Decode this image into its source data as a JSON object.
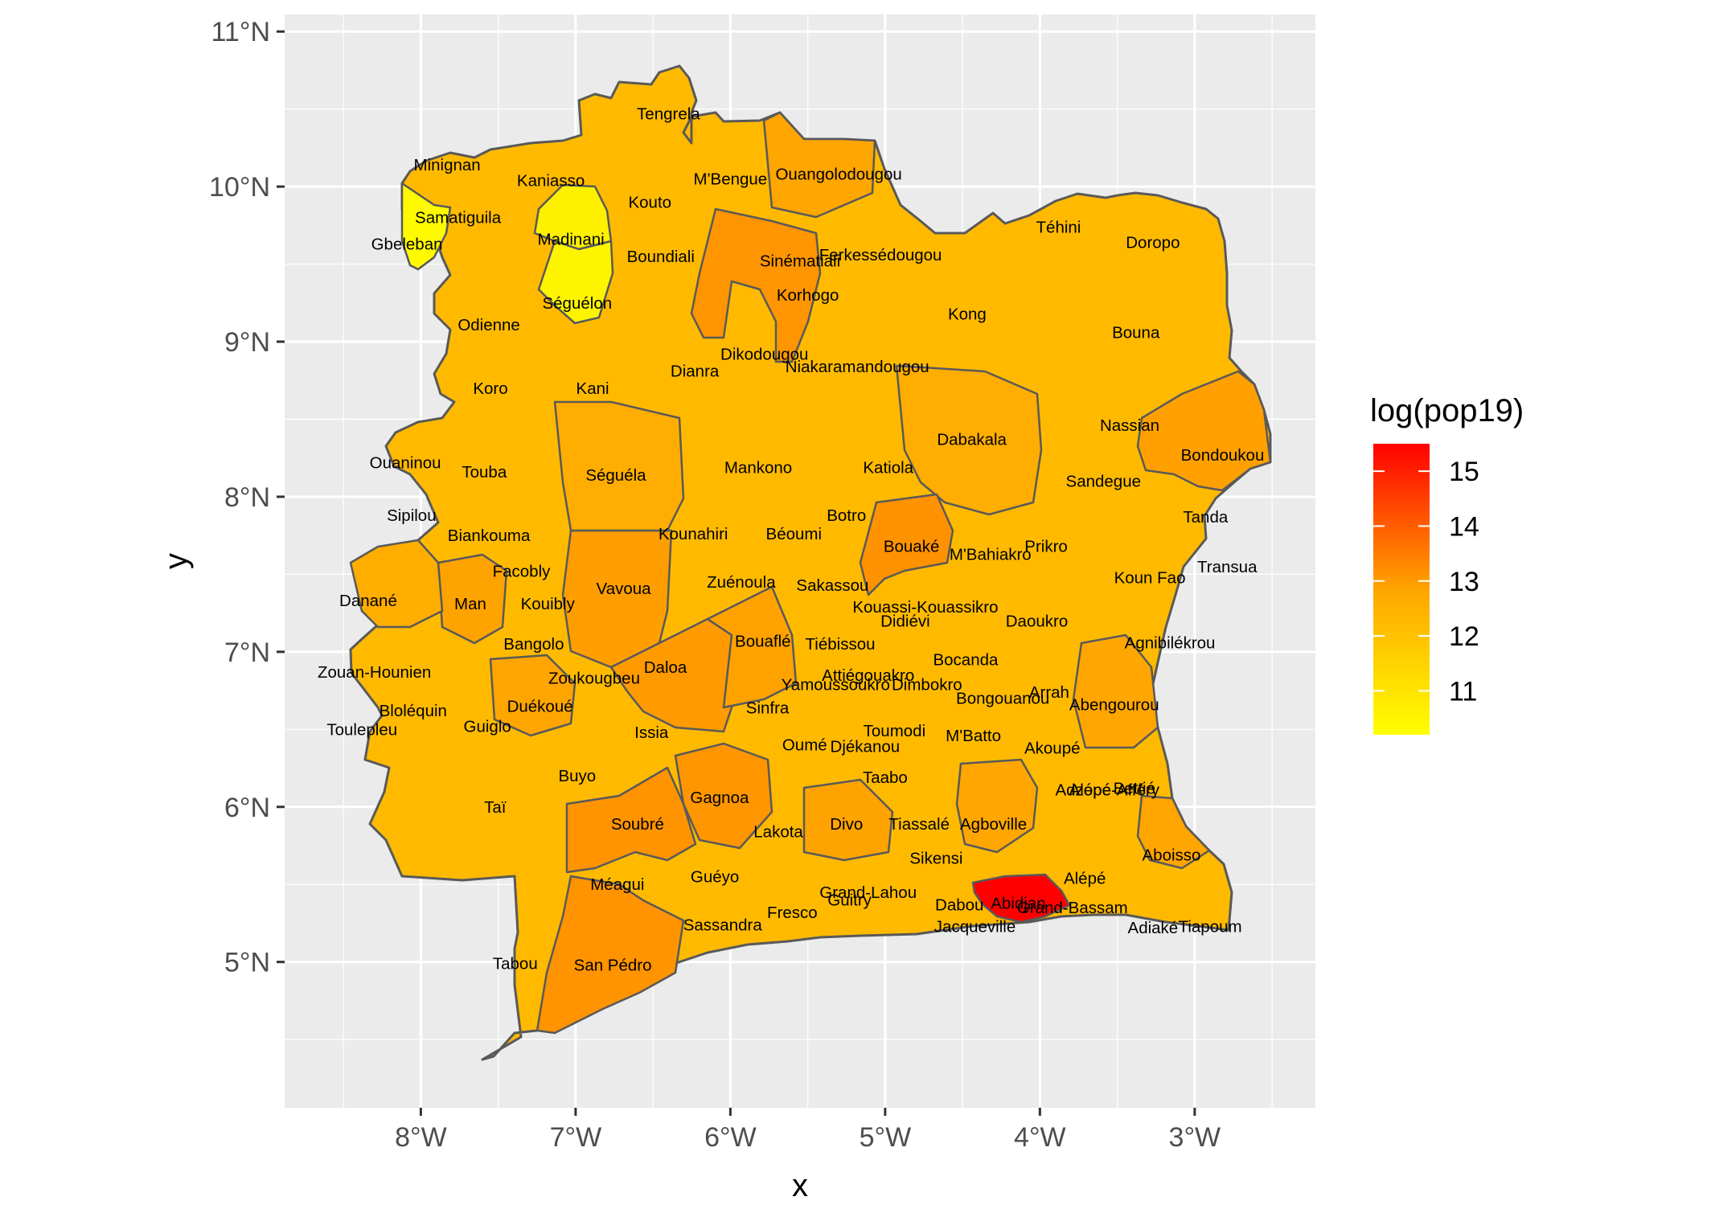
{
  "chart_data": {
    "type": "choropleth",
    "title": "",
    "xlabel": "x",
    "ylabel": "y",
    "x_ticks": [
      "8°W",
      "7°W",
      "6°W",
      "5°W",
      "4°W",
      "3°W"
    ],
    "x_tick_values": [
      -8,
      -7,
      -6,
      -5,
      -4,
      -3
    ],
    "y_ticks": [
      "5°N",
      "6°N",
      "7°N",
      "8°N",
      "9°N",
      "10°N",
      "11°N"
    ],
    "y_tick_values": [
      5,
      6,
      7,
      8,
      9,
      10,
      11
    ],
    "xlim": [
      -8.88,
      -2.22
    ],
    "ylim": [
      4.06,
      11.11
    ],
    "grid": true,
    "legend": {
      "title": "log(pop19)",
      "placement": "right",
      "ticks": [
        "15",
        "14",
        "13",
        "12",
        "11"
      ],
      "tick_values": [
        15,
        14,
        13,
        12,
        11
      ],
      "range": [
        10.2,
        15.5
      ],
      "color_low": "#FFFF00",
      "color_high": "#FF0000"
    },
    "fill_range": [
      10.2,
      15.5
    ],
    "colors": {
      "panel": "#EBEBEB",
      "grid": "#FFFFFF",
      "border": "#595959",
      "low": "#FFFF00",
      "high": "#FF0000"
    },
    "regions": [
      {
        "name": "Tengrela",
        "lon": -6.4,
        "lat": 10.47,
        "value": 12.3
      },
      {
        "name": "Minignan",
        "lon": -7.83,
        "lat": 10.14,
        "value": 11.0
      },
      {
        "name": "Kaniasso",
        "lon": -7.16,
        "lat": 10.04,
        "value": 11.6
      },
      {
        "name": "M'Bengue",
        "lon": -6.0,
        "lat": 10.05,
        "value": 12.0
      },
      {
        "name": "Ouangolodougou",
        "lon": -5.3,
        "lat": 10.08,
        "value": 12.7
      },
      {
        "name": "Kouto",
        "lon": -6.52,
        "lat": 9.9,
        "value": 12.1
      },
      {
        "name": "Samatiguila",
        "lon": -7.76,
        "lat": 9.8,
        "value": 10.7
      },
      {
        "name": "Madinani",
        "lon": -7.03,
        "lat": 9.66,
        "value": 10.8
      },
      {
        "name": "Gbeleban",
        "lon": -8.09,
        "lat": 9.63,
        "value": 10.3
      },
      {
        "name": "Boundiali",
        "lon": -6.45,
        "lat": 9.55,
        "value": 12.1
      },
      {
        "name": "Sinématiali",
        "lon": -5.55,
        "lat": 9.52,
        "value": 11.8
      },
      {
        "name": "Ferkessédougou",
        "lon": -5.03,
        "lat": 9.56,
        "value": 12.3
      },
      {
        "name": "Téhini",
        "lon": -3.88,
        "lat": 9.74,
        "value": 11.4
      },
      {
        "name": "Doropo",
        "lon": -3.27,
        "lat": 9.64,
        "value": 11.7
      },
      {
        "name": "Korhogo",
        "lon": -5.5,
        "lat": 9.3,
        "value": 13.6
      },
      {
        "name": "Séguélon",
        "lon": -6.99,
        "lat": 9.25,
        "value": 10.7
      },
      {
        "name": "Odienne",
        "lon": -7.56,
        "lat": 9.11,
        "value": 11.6
      },
      {
        "name": "Kong",
        "lon": -4.47,
        "lat": 9.18,
        "value": 12.0
      },
      {
        "name": "Bouna",
        "lon": -3.38,
        "lat": 9.06,
        "value": 12.0
      },
      {
        "name": "Dikodougou",
        "lon": -5.78,
        "lat": 8.92,
        "value": 12.4
      },
      {
        "name": "Niakaramandougou",
        "lon": -5.18,
        "lat": 8.84,
        "value": 12.3
      },
      {
        "name": "Dianra",
        "lon": -6.23,
        "lat": 8.81,
        "value": 11.9
      },
      {
        "name": "Koro",
        "lon": -7.55,
        "lat": 8.7,
        "value": 11.8
      },
      {
        "name": "Kani",
        "lon": -6.89,
        "lat": 8.7,
        "value": 11.9
      },
      {
        "name": "Nassian",
        "lon": -3.42,
        "lat": 8.46,
        "value": 11.1
      },
      {
        "name": "Dabakala",
        "lon": -4.44,
        "lat": 8.37,
        "value": 12.6
      },
      {
        "name": "Bondoukou",
        "lon": -2.82,
        "lat": 8.27,
        "value": 13.1
      },
      {
        "name": "Ouaninou",
        "lon": -8.1,
        "lat": 8.22,
        "value": 11.2
      },
      {
        "name": "Touba",
        "lon": -7.59,
        "lat": 8.16,
        "value": 12.0
      },
      {
        "name": "Séguéla",
        "lon": -6.74,
        "lat": 8.14,
        "value": 12.6
      },
      {
        "name": "Mankono",
        "lon": -5.82,
        "lat": 8.19,
        "value": 12.5
      },
      {
        "name": "Katiola",
        "lon": -4.98,
        "lat": 8.19,
        "value": 12.2
      },
      {
        "name": "Sandegue",
        "lon": -3.59,
        "lat": 8.1,
        "value": 11.7
      },
      {
        "name": "Sipilou",
        "lon": -8.06,
        "lat": 7.88,
        "value": 11.1
      },
      {
        "name": "Tanda",
        "lon": -2.93,
        "lat": 7.87,
        "value": 11.8
      },
      {
        "name": "Botro",
        "lon": -5.25,
        "lat": 7.88,
        "value": 12.2
      },
      {
        "name": "Biankouma",
        "lon": -7.56,
        "lat": 7.75,
        "value": 12.1
      },
      {
        "name": "Kounahiri",
        "lon": -6.24,
        "lat": 7.76,
        "value": 11.8
      },
      {
        "name": "Béoumi",
        "lon": -5.59,
        "lat": 7.76,
        "value": 12.2
      },
      {
        "name": "Bouaké",
        "lon": -4.83,
        "lat": 7.68,
        "value": 13.6
      },
      {
        "name": "Prikro",
        "lon": -3.96,
        "lat": 7.68,
        "value": 11.6
      },
      {
        "name": "M'Bahiakro",
        "lon": -4.32,
        "lat": 7.63,
        "value": 11.9
      },
      {
        "name": "Transua",
        "lon": -2.79,
        "lat": 7.55,
        "value": 11.6
      },
      {
        "name": "Facobly",
        "lon": -7.35,
        "lat": 7.52,
        "value": 11.5
      },
      {
        "name": "Koun Fao",
        "lon": -3.29,
        "lat": 7.48,
        "value": 11.8
      },
      {
        "name": "Vavoua",
        "lon": -6.69,
        "lat": 7.41,
        "value": 13.2
      },
      {
        "name": "Zuénoula",
        "lon": -5.93,
        "lat": 7.45,
        "value": 12.4
      },
      {
        "name": "Sakassou",
        "lon": -5.34,
        "lat": 7.43,
        "value": 11.9
      },
      {
        "name": "Danané",
        "lon": -8.34,
        "lat": 7.33,
        "value": 12.7
      },
      {
        "name": "Man",
        "lon": -7.68,
        "lat": 7.31,
        "value": 13.0
      },
      {
        "name": "Kouibly",
        "lon": -7.18,
        "lat": 7.31,
        "value": 11.9
      },
      {
        "name": "Kouassi-Kouassikro",
        "lon": -4.74,
        "lat": 7.29,
        "value": 11.2
      },
      {
        "name": "Didiévi",
        "lon": -4.87,
        "lat": 7.2,
        "value": 11.8
      },
      {
        "name": "Daoukro",
        "lon": -4.02,
        "lat": 7.2,
        "value": 12.1
      },
      {
        "name": "Tiébissou",
        "lon": -5.29,
        "lat": 7.05,
        "value": 11.9
      },
      {
        "name": "Bangolo",
        "lon": -7.27,
        "lat": 7.05,
        "value": 12.4
      },
      {
        "name": "Agnibilékrou",
        "lon": -3.16,
        "lat": 7.06,
        "value": 12.2
      },
      {
        "name": "Bouaflé",
        "lon": -5.79,
        "lat": 7.07,
        "value": 13.0
      },
      {
        "name": "Bocanda",
        "lon": -4.48,
        "lat": 6.95,
        "value": 12.0
      },
      {
        "name": "Zouan-Hounien",
        "lon": -8.3,
        "lat": 6.87,
        "value": 12.1
      },
      {
        "name": "Daloa",
        "lon": -6.42,
        "lat": 6.9,
        "value": 13.3
      },
      {
        "name": "Attiégouakro",
        "lon": -5.11,
        "lat": 6.85,
        "value": 11.5
      },
      {
        "name": "Zoukougbeu",
        "lon": -6.88,
        "lat": 6.83,
        "value": 11.9
      },
      {
        "name": "Yamoussoukro",
        "lon": -5.32,
        "lat": 6.79,
        "value": 12.6
      },
      {
        "name": "Dimbokro",
        "lon": -4.73,
        "lat": 6.79,
        "value": 11.7
      },
      {
        "name": "Arrah",
        "lon": -3.94,
        "lat": 6.74,
        "value": 11.8
      },
      {
        "name": "Bongouanou",
        "lon": -4.24,
        "lat": 6.7,
        "value": 11.9
      },
      {
        "name": "Bloléquin",
        "lon": -8.05,
        "lat": 6.62,
        "value": 11.8
      },
      {
        "name": "Duékoué",
        "lon": -7.23,
        "lat": 6.65,
        "value": 12.8
      },
      {
        "name": "Sinfra",
        "lon": -5.76,
        "lat": 6.64,
        "value": 12.3
      },
      {
        "name": "Abengourou",
        "lon": -3.52,
        "lat": 6.66,
        "value": 12.8
      },
      {
        "name": "Guiglo",
        "lon": -7.57,
        "lat": 6.52,
        "value": 12.4
      },
      {
        "name": "Toulepleu",
        "lon": -8.38,
        "lat": 6.5,
        "value": 11.6
      },
      {
        "name": "Toumodi",
        "lon": -4.94,
        "lat": 6.49,
        "value": 11.8
      },
      {
        "name": "Issia",
        "lon": -6.51,
        "lat": 6.48,
        "value": 12.6
      },
      {
        "name": "M'Batto",
        "lon": -4.43,
        "lat": 6.46,
        "value": 11.8
      },
      {
        "name": "Oumé",
        "lon": -5.52,
        "lat": 6.4,
        "value": 12.4
      },
      {
        "name": "Djékanou",
        "lon": -5.13,
        "lat": 6.39,
        "value": 10.8
      },
      {
        "name": "Akoupé",
        "lon": -3.92,
        "lat": 6.38,
        "value": 12.0
      },
      {
        "name": "Buyo",
        "lon": -6.99,
        "lat": 6.2,
        "value": 12.1
      },
      {
        "name": "Taabo",
        "lon": -5.0,
        "lat": 6.19,
        "value": 11.8
      },
      {
        "name": "Adzopé",
        "lon": -3.72,
        "lat": 6.11,
        "value": 12.4
      },
      {
        "name": "Alépé-Afféry",
        "lon": -3.52,
        "lat": 6.11,
        "value": 11.9
      },
      {
        "name": "Bettié",
        "lon": -3.39,
        "lat": 6.12,
        "value": 11.0
      },
      {
        "name": "Taï",
        "lon": -7.52,
        "lat": 6.0,
        "value": 11.8
      },
      {
        "name": "Gagnoa",
        "lon": -6.07,
        "lat": 6.06,
        "value": 13.3
      },
      {
        "name": "Soubré",
        "lon": -6.6,
        "lat": 5.89,
        "value": 13.4
      },
      {
        "name": "Divo",
        "lon": -5.25,
        "lat": 5.89,
        "value": 12.9
      },
      {
        "name": "Tiassalé",
        "lon": -4.78,
        "lat": 5.89,
        "value": 12.2
      },
      {
        "name": "Agboville",
        "lon": -4.3,
        "lat": 5.89,
        "value": 12.7
      },
      {
        "name": "Lakota",
        "lon": -5.69,
        "lat": 5.84,
        "value": 12.4
      },
      {
        "name": "Sikensi",
        "lon": -4.67,
        "lat": 5.67,
        "value": 11.7
      },
      {
        "name": "Aboisso",
        "lon": -3.15,
        "lat": 5.69,
        "value": 12.6
      },
      {
        "name": "Alépé",
        "lon": -3.71,
        "lat": 5.54,
        "value": 11.9
      },
      {
        "name": "Guéyo",
        "lon": -6.1,
        "lat": 5.55,
        "value": 11.2
      },
      {
        "name": "Méagui",
        "lon": -6.73,
        "lat": 5.5,
        "value": 12.2
      },
      {
        "name": "Grand-Lahou",
        "lon": -5.11,
        "lat": 5.45,
        "value": 12.0
      },
      {
        "name": "Guitry",
        "lon": -5.23,
        "lat": 5.4,
        "value": 11.8
      },
      {
        "name": "Dabou",
        "lon": -4.52,
        "lat": 5.37,
        "value": 12.2
      },
      {
        "name": "Abidjan",
        "lon": -4.14,
        "lat": 5.38,
        "value": 15.4
      },
      {
        "name": "Grand-Bassam",
        "lon": -3.79,
        "lat": 5.35,
        "value": 12.1
      },
      {
        "name": "Fresco",
        "lon": -5.6,
        "lat": 5.32,
        "value": 11.6
      },
      {
        "name": "Sassandra",
        "lon": -6.05,
        "lat": 5.24,
        "value": 12.2
      },
      {
        "name": "Jacqueville",
        "lon": -4.42,
        "lat": 5.23,
        "value": 11.4
      },
      {
        "name": "Adiaké",
        "lon": -3.27,
        "lat": 5.22,
        "value": 11.8
      },
      {
        "name": "Tiapoum",
        "lon": -2.9,
        "lat": 5.23,
        "value": 11.5
      },
      {
        "name": "San Pédro",
        "lon": -6.76,
        "lat": 4.98,
        "value": 13.5
      },
      {
        "name": "Tabou",
        "lon": -7.39,
        "lat": 4.99,
        "value": 12.2
      }
    ]
  }
}
